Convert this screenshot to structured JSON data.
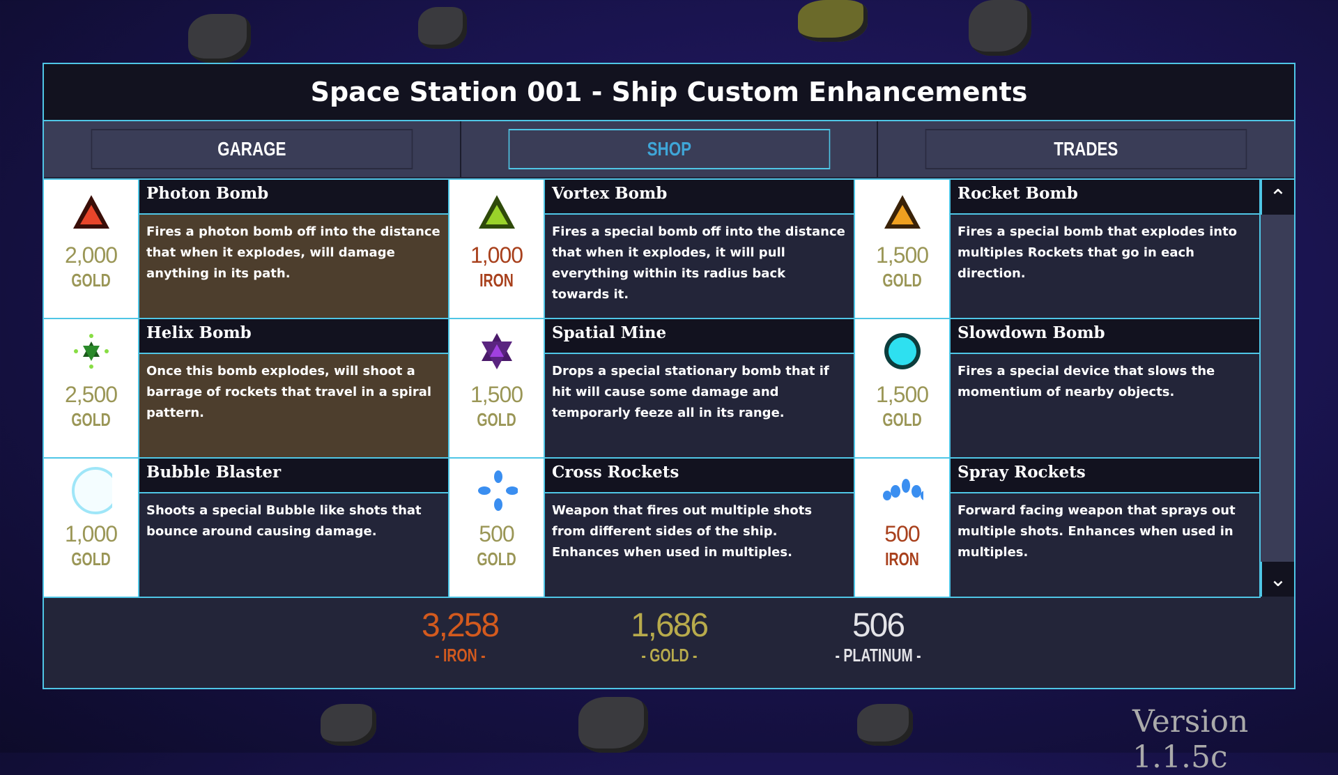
{
  "title": "Space Station 001 - Ship Custom Enhancements",
  "tabs": [
    {
      "label": "GARAGE",
      "active": false
    },
    {
      "label": "SHOP",
      "active": true
    },
    {
      "label": "TRADES",
      "active": false
    }
  ],
  "items": [
    {
      "name": "Photon Bomb",
      "price": "2,000",
      "currency": "GOLD",
      "icon": "red-triangle-bomb-icon",
      "desc": "Fires a photon bomb off into the distance that when it explodes, will damage anything in its path.",
      "highlighted": true
    },
    {
      "name": "Vortex Bomb",
      "price": "1,000",
      "currency": "IRON",
      "icon": "green-triangle-bomb-icon",
      "desc": "Fires a special bomb off into the distance that when it explodes, it will pull everything within its radius back towards it.",
      "highlighted": false
    },
    {
      "name": "Rocket Bomb",
      "price": "1,500",
      "currency": "GOLD",
      "icon": "orange-triangle-bomb-icon",
      "desc": "Fires a special bomb that explodes into multiples Rockets that go in each direction.",
      "highlighted": false
    },
    {
      "name": "Helix Bomb",
      "price": "2,500",
      "currency": "GOLD",
      "icon": "green-star-bomb-icon",
      "desc": "Once this bomb explodes, will shoot a barrage of rockets that travel in a spiral pattern.",
      "highlighted": true
    },
    {
      "name": "Spatial Mine",
      "price": "1,500",
      "currency": "GOLD",
      "icon": "purple-star-mine-icon",
      "desc": "Drops a special stationary bomb that if hit will cause some damage and temporarly feeze all in its range.",
      "highlighted": false
    },
    {
      "name": "Slowdown Bomb",
      "price": "1,500",
      "currency": "GOLD",
      "icon": "cyan-orb-icon",
      "desc": "Fires a special device that slows the momentium of nearby objects.",
      "highlighted": false
    },
    {
      "name": "Bubble Blaster",
      "price": "1,000",
      "currency": "GOLD",
      "icon": "bubble-icon",
      "desc": "Shoots a special Bubble like shots that bounce around causing damage.",
      "highlighted": false
    },
    {
      "name": "Cross Rockets",
      "price": "500",
      "currency": "GOLD",
      "icon": "cross-rockets-icon",
      "desc": "Weapon that fires out multiple shots from different sides of the ship. Enhances when used in multiples.",
      "highlighted": false
    },
    {
      "name": "Spray Rockets",
      "price": "500",
      "currency": "IRON",
      "icon": "spray-rockets-icon",
      "desc": "Forward facing weapon that sprays out multiple shots. Enhances when used in multiples.",
      "highlighted": false
    }
  ],
  "scroll": {
    "up_icon": "chevron-up-icon",
    "down_icon": "chevron-down-icon"
  },
  "resources": [
    {
      "value": "3,258",
      "label": "- IRON -",
      "color": "#d35a1e"
    },
    {
      "value": "1,686",
      "label": "- GOLD -",
      "color": "#b8ab4c"
    },
    {
      "value": "506",
      "label": "- PLATINUM -",
      "color": "#e4e4e8"
    }
  ],
  "version": "Version 1.1.5c"
}
